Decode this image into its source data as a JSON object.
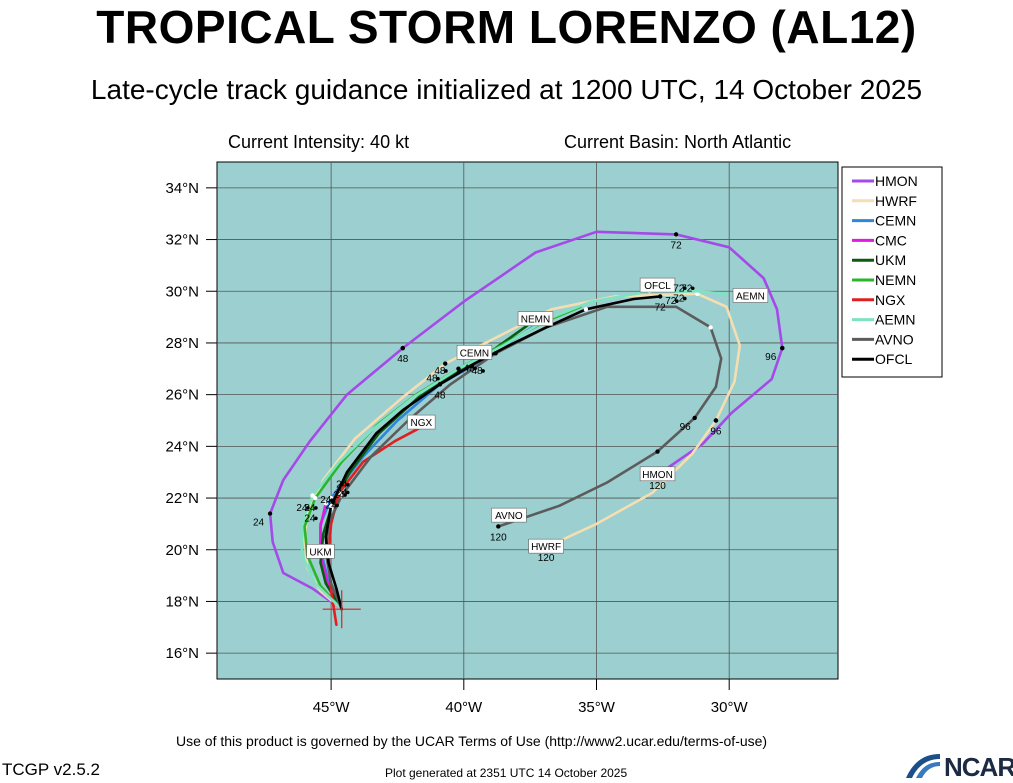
{
  "header": {
    "title": "TROPICAL STORM LORENZO (AL12)",
    "subtitle": "Late-cycle track guidance initialized at 1200 UTC, 14 October 2025",
    "intensity": "Current Intensity: 40 kt",
    "basin": "Current Basin: North Atlantic"
  },
  "footer": {
    "terms": "Use of this product is governed by the UCAR Terms of Use (http://www2.ucar.edu/terms-of-use)",
    "version": "TCGP v2.5.2",
    "generated": "Plot generated at 2351 UTC   14 October 2025",
    "logo_text": "NCAR"
  },
  "chart_data": {
    "type": "line",
    "xlim": [
      -49.3,
      -25.9
    ],
    "ylim": [
      15,
      35
    ],
    "x_ticks": [
      -45,
      -40,
      -35,
      -30
    ],
    "x_tick_labels": [
      "45°W",
      "40°W",
      "35°W",
      "30°W"
    ],
    "y_ticks": [
      16,
      18,
      20,
      22,
      24,
      26,
      28,
      30,
      32,
      34
    ],
    "y_tick_labels": [
      "16°N",
      "18°N",
      "20°N",
      "22°N",
      "24°N",
      "26°N",
      "28°N",
      "30°N",
      "32°N",
      "34°N"
    ],
    "grid": true,
    "ocean_color": "#9ccfcf",
    "legend_position": "right",
    "current_position": [
      -44.6,
      17.7
    ],
    "series": [
      {
        "name": "HMON",
        "color": "#a54ae8",
        "points": [
          [
            -44.6,
            17.7
          ],
          [
            -45.7,
            18.5
          ],
          [
            -46.8,
            19.1
          ],
          [
            -47.2,
            20.3
          ],
          [
            -47.3,
            21.4
          ],
          [
            -46.8,
            22.7
          ],
          [
            -45.8,
            24.2
          ],
          [
            -44.4,
            26.0
          ],
          [
            -42.3,
            27.8
          ],
          [
            -40.0,
            29.6
          ],
          [
            -37.3,
            31.5
          ],
          [
            -35.0,
            32.3
          ],
          [
            -32.0,
            32.2
          ],
          [
            -30.0,
            31.7
          ],
          [
            -28.7,
            30.5
          ],
          [
            -28.2,
            29.3
          ],
          [
            -28.0,
            27.8
          ],
          [
            -28.4,
            26.6
          ],
          [
            -29.9,
            25.3
          ],
          [
            -31.0,
            24.1
          ],
          [
            -32.7,
            22.9
          ]
        ],
        "fh_labels": [
          {
            "text": "24",
            "x": -47.3,
            "y": 21.4,
            "anchor": "left"
          },
          {
            "text": "48",
            "x": -42.3,
            "y": 27.8,
            "anchor": "below"
          },
          {
            "text": "72",
            "x": -32.0,
            "y": 32.2,
            "anchor": "below"
          },
          {
            "text": "96",
            "x": -28.0,
            "y": 27.8,
            "anchor": "left"
          },
          {
            "text": "120",
            "x": -32.7,
            "y": 22.9,
            "anchor": "below"
          }
        ],
        "box": {
          "text": "HMON",
          "x": -32.7,
          "y": 22.9
        }
      },
      {
        "name": "HWRF",
        "color": "#f4deb2",
        "points": [
          [
            -44.6,
            17.7
          ],
          [
            -45.4,
            18.4
          ],
          [
            -45.9,
            19.3
          ],
          [
            -46.0,
            20.4
          ],
          [
            -45.9,
            21.4
          ],
          [
            -45.3,
            22.7
          ],
          [
            -44.1,
            24.3
          ],
          [
            -42.3,
            25.9
          ],
          [
            -40.7,
            27.2
          ],
          [
            -38.8,
            28.2
          ],
          [
            -36.7,
            29.3
          ],
          [
            -34.3,
            29.8
          ],
          [
            -31.2,
            29.9
          ],
          [
            -30.1,
            29.4
          ],
          [
            -29.6,
            27.9
          ],
          [
            -29.8,
            26.5
          ],
          [
            -30.5,
            25.0
          ],
          [
            -31.4,
            23.7
          ],
          [
            -32.9,
            22.2
          ],
          [
            -35.0,
            21.0
          ],
          [
            -36.9,
            20.1
          ]
        ],
        "fh_labels": [
          {
            "text": "96",
            "x": -30.5,
            "y": 25.0,
            "anchor": "below"
          },
          {
            "text": "120",
            "x": -36.9,
            "y": 20.1,
            "anchor": "below"
          }
        ],
        "box": {
          "text": "HWRF",
          "x": -36.9,
          "y": 20.1
        }
      },
      {
        "name": "CEMN",
        "color": "#2e86d8",
        "points": [
          [
            -44.6,
            17.7
          ],
          [
            -45.1,
            18.8
          ],
          [
            -45.4,
            20.0
          ],
          [
            -45.4,
            21.0
          ],
          [
            -45.0,
            22.0
          ],
          [
            -43.8,
            23.6
          ],
          [
            -42.5,
            25.0
          ],
          [
            -40.9,
            26.4
          ],
          [
            -39.7,
            27.1
          ],
          [
            -38.3,
            28.0
          ],
          [
            -36.7,
            29.1
          ]
        ],
        "fh_labels": [
          {
            "text": "48",
            "x": -40.9,
            "y": 26.4,
            "anchor": "below"
          }
        ],
        "box": {
          "text": "CEMN",
          "x": -39.6,
          "y": 27.6
        }
      },
      {
        "name": "CMC",
        "color": "#e01ae0",
        "points": [
          [
            -44.6,
            17.7
          ],
          [
            -45.1,
            18.6
          ],
          [
            -45.4,
            19.8
          ],
          [
            -45.4,
            20.9
          ],
          [
            -45.2,
            21.8
          ]
        ],
        "fh_labels": [],
        "box": null
      },
      {
        "name": "UKM",
        "color": "#0a5a12",
        "points": [
          [
            -44.6,
            17.7
          ],
          [
            -45.2,
            18.7
          ],
          [
            -45.4,
            19.5
          ],
          [
            -45.3,
            20.6
          ],
          [
            -45.0,
            21.6
          ],
          [
            -44.3,
            23.0
          ],
          [
            -43.2,
            24.5
          ],
          [
            -41.7,
            25.9
          ],
          [
            -40.2,
            26.9
          ],
          [
            -38.8,
            27.8
          ],
          [
            -37.3,
            28.9
          ]
        ],
        "fh_labels": [],
        "box": {
          "text": "UKM",
          "x": -45.4,
          "y": 19.9
        }
      },
      {
        "name": "NEMN",
        "color": "#2bb52b",
        "points": [
          [
            -44.6,
            17.7
          ],
          [
            -45.4,
            18.6
          ],
          [
            -45.9,
            19.8
          ],
          [
            -46.0,
            20.9
          ],
          [
            -45.6,
            22.0
          ],
          [
            -44.6,
            23.4
          ],
          [
            -43.3,
            24.8
          ],
          [
            -41.8,
            26.0
          ],
          [
            -40.2,
            27.0
          ],
          [
            -38.6,
            27.9
          ],
          [
            -37.0,
            28.8
          ],
          [
            -35.6,
            29.4
          ]
        ],
        "fh_labels": [],
        "box": {
          "text": "NEMN",
          "x": -37.3,
          "y": 28.9
        }
      },
      {
        "name": "NGX",
        "color": "#e02020",
        "points": [
          [
            -44.8,
            17.1
          ],
          [
            -45.0,
            18.4
          ],
          [
            -45.1,
            19.8
          ],
          [
            -45.0,
            21.0
          ],
          [
            -44.7,
            22.2
          ],
          [
            -43.8,
            23.4
          ],
          [
            -42.6,
            24.2
          ],
          [
            -41.5,
            24.8
          ]
        ],
        "fh_labels": [],
        "box": {
          "text": "NGX",
          "x": -41.6,
          "y": 24.9
        }
      },
      {
        "name": "AEMN",
        "color": "#7de3c2",
        "points": [
          [
            -44.6,
            17.7
          ],
          [
            -45.6,
            18.7
          ],
          [
            -46.1,
            19.8
          ],
          [
            -46.1,
            21.0
          ],
          [
            -45.7,
            22.1
          ],
          [
            -44.7,
            23.4
          ],
          [
            -43.5,
            24.6
          ],
          [
            -41.9,
            25.9
          ],
          [
            -40.2,
            27.0
          ],
          [
            -38.5,
            27.9
          ],
          [
            -36.9,
            28.9
          ],
          [
            -35.2,
            29.6
          ],
          [
            -33.0,
            30.0
          ],
          [
            -31.2,
            30.0
          ],
          [
            -30.1,
            29.9
          ]
        ],
        "fh_labels": [],
        "box": {
          "text": "AEMN",
          "x": -29.2,
          "y": 29.8
        }
      },
      {
        "name": "AVNO",
        "color": "#5c5c5c",
        "points": [
          [
            -44.6,
            17.7
          ],
          [
            -45.0,
            18.7
          ],
          [
            -45.2,
            19.9
          ],
          [
            -45.1,
            21.0
          ],
          [
            -44.6,
            22.1
          ],
          [
            -43.5,
            23.6
          ],
          [
            -42.1,
            25.0
          ],
          [
            -40.5,
            26.4
          ],
          [
            -38.8,
            27.6
          ],
          [
            -36.9,
            28.6
          ],
          [
            -34.6,
            29.4
          ],
          [
            -32.0,
            29.4
          ],
          [
            -30.7,
            28.6
          ],
          [
            -30.3,
            27.4
          ],
          [
            -30.5,
            26.3
          ],
          [
            -31.3,
            25.1
          ],
          [
            -32.7,
            23.8
          ],
          [
            -34.6,
            22.6
          ],
          [
            -36.4,
            21.7
          ],
          [
            -38.7,
            20.9
          ]
        ],
        "fh_labels": [
          {
            "text": "96",
            "x": -31.3,
            "y": 25.1,
            "anchor": "below-left"
          },
          {
            "text": "120",
            "x": -38.7,
            "y": 20.9,
            "anchor": "below"
          }
        ],
        "box": {
          "text": "AVNO",
          "x": -38.3,
          "y": 21.3
        }
      },
      {
        "name": "OFCL",
        "color": "#000000",
        "points": [
          [
            -44.6,
            17.7
          ],
          [
            -44.8,
            18.5
          ],
          [
            -45.1,
            19.5
          ],
          [
            -45.2,
            20.5
          ],
          [
            -45.0,
            21.7
          ],
          [
            -44.4,
            23.0
          ],
          [
            -43.3,
            24.5
          ],
          [
            -42.3,
            25.4
          ],
          [
            -40.9,
            26.4
          ],
          [
            -39.6,
            27.2
          ],
          [
            -38.3,
            27.9
          ],
          [
            -36.9,
            28.6
          ],
          [
            -35.4,
            29.3
          ],
          [
            -33.6,
            29.7
          ],
          [
            -32.6,
            29.8
          ]
        ],
        "fh_labels": [
          {
            "text": "72",
            "x": -32.6,
            "y": 29.8,
            "anchor": "below"
          }
        ],
        "box": {
          "text": "OFCL",
          "x": -32.7,
          "y": 30.2
        }
      }
    ],
    "extra_fh_labels": [
      {
        "text": "24",
        "x": -45.8,
        "y": 21.5
      },
      {
        "text": "24",
        "x": -46.1,
        "y": 21.5
      },
      {
        "text": "24",
        "x": -45.8,
        "y": 21.1
      },
      {
        "text": "24",
        "x": -44.6,
        "y": 22.4
      },
      {
        "text": "24",
        "x": -44.7,
        "y": 22.0
      },
      {
        "text": "24",
        "x": -45.2,
        "y": 21.8
      },
      {
        "text": "24",
        "x": -45.0,
        "y": 21.6
      },
      {
        "text": "24",
        "x": -44.6,
        "y": 22.1
      },
      {
        "text": "48",
        "x": -40.9,
        "y": 26.8
      },
      {
        "text": "48",
        "x": -41.2,
        "y": 26.5
      },
      {
        "text": "48",
        "x": -39.8,
        "y": 26.9
      },
      {
        "text": "48",
        "x": -39.5,
        "y": 26.8
      },
      {
        "text": "72",
        "x": -31.9,
        "y": 30.0
      },
      {
        "text": "72",
        "x": -31.6,
        "y": 30.0
      },
      {
        "text": "72",
        "x": -32.2,
        "y": 29.5
      },
      {
        "text": "72",
        "x": -31.9,
        "y": 29.6
      }
    ]
  }
}
